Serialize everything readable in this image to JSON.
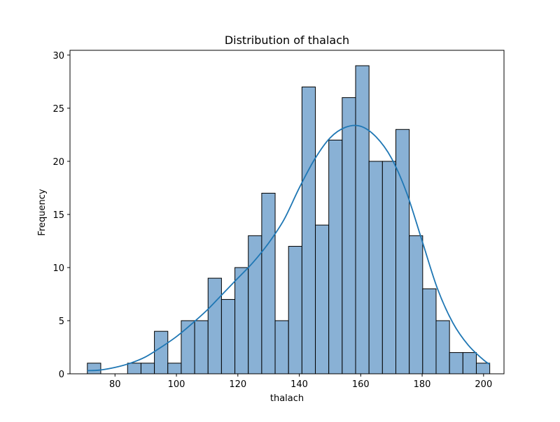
{
  "chart_data": {
    "type": "bar",
    "title": "Distribution of thalach",
    "xlabel": "thalach",
    "ylabel": "Frequency",
    "xlim": [
      65.35,
      206.65
    ],
    "ylim": [
      0,
      30.45
    ],
    "xticks": [
      80,
      100,
      120,
      140,
      160,
      180,
      200
    ],
    "yticks": [
      0,
      5,
      10,
      15,
      20,
      25,
      30
    ],
    "bin_start": 71,
    "bin_width": 4.367,
    "values": [
      1,
      0,
      0,
      1,
      1,
      4,
      1,
      5,
      5,
      9,
      7,
      10,
      13,
      17,
      5,
      12,
      27,
      14,
      22,
      26,
      29,
      20,
      20,
      23,
      13,
      8,
      5,
      2,
      2,
      1
    ],
    "kde": {
      "x": [
        71,
        75,
        80,
        85,
        90,
        95,
        100,
        105,
        110,
        115,
        120,
        125,
        130,
        135,
        140,
        145,
        150,
        155,
        160,
        165,
        170,
        175,
        180,
        185,
        190,
        195,
        200,
        202
      ],
      "y": [
        0.3,
        0.35,
        0.6,
        1.0,
        1.6,
        2.5,
        3.5,
        4.7,
        6.0,
        7.5,
        9.0,
        10.5,
        12.3,
        14.5,
        17.5,
        20.2,
        22.2,
        23.2,
        23.3,
        22.3,
        20.3,
        17.0,
        12.5,
        8.0,
        4.8,
        2.7,
        1.3,
        0.9
      ]
    },
    "bar_fill": "#89B1D5",
    "bar_edge": "#000000",
    "kde_color": "#1f77b4",
    "grid": false,
    "legend": "none"
  }
}
